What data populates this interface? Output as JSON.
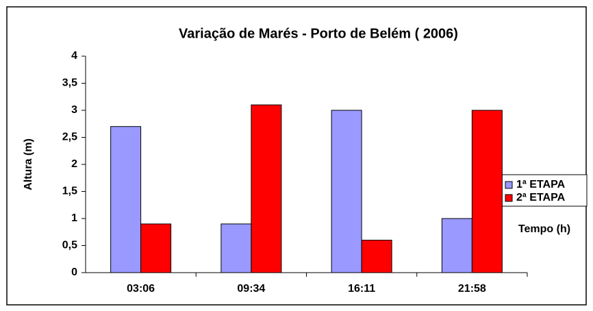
{
  "chart_data": {
    "type": "bar",
    "title": "Variação de Marés - Porto de Belém ( 2006)",
    "ylabel": "Altura (m)",
    "xlabel": "Tempo (h)",
    "categories": [
      "03:06",
      "09:34",
      "16:11",
      "21:58"
    ],
    "series": [
      {
        "name": "1ª ETAPA",
        "color": "#9999ff",
        "values": [
          2.7,
          0.9,
          3.0,
          1.0
        ]
      },
      {
        "name": "2ª ETAPA",
        "color": "#ff0000",
        "values": [
          0.9,
          3.1,
          0.6,
          3.0
        ]
      }
    ],
    "ylim": [
      0,
      4
    ],
    "yticks": [
      0,
      {
        "value": 0.5,
        "label": "0,5"
      },
      1,
      {
        "value": 1.5,
        "label": "1,5"
      },
      2,
      {
        "value": 2.5,
        "label": "2,5"
      },
      3,
      {
        "value": 3.5,
        "label": "3,5"
      },
      4
    ],
    "grid": false,
    "legend": "right"
  }
}
